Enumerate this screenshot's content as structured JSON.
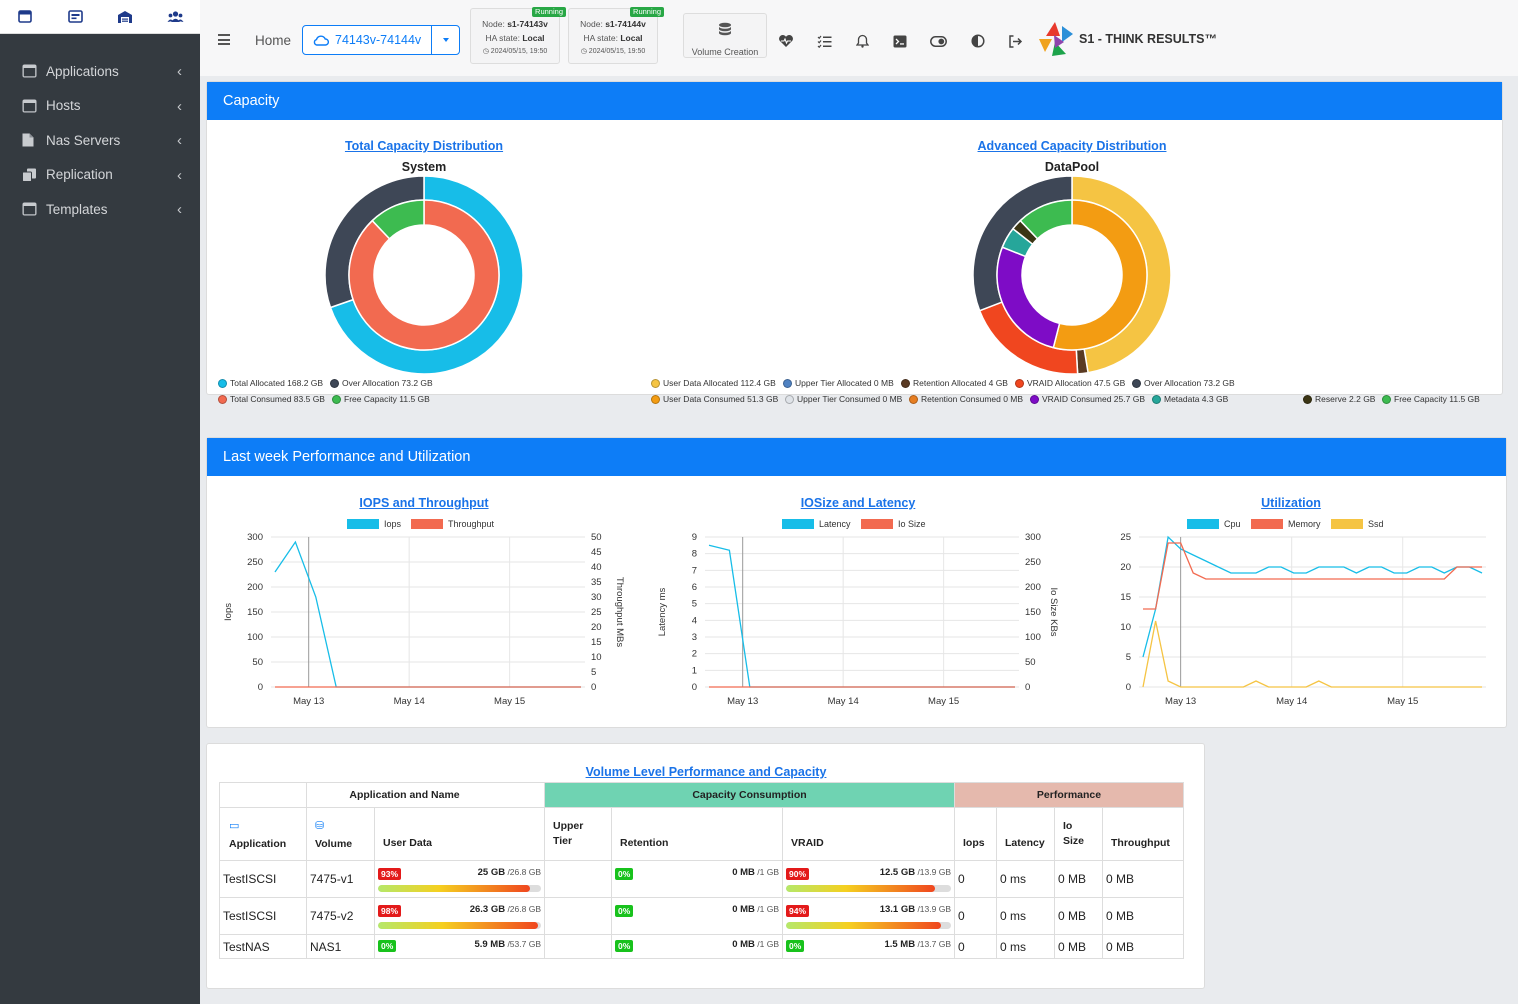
{
  "sidebar": {
    "items": [
      {
        "label": "Applications",
        "icon": "window-icon"
      },
      {
        "label": "Hosts",
        "icon": "host-icon"
      },
      {
        "label": "Nas Servers",
        "icon": "file-icon"
      },
      {
        "label": "Replication",
        "icon": "copy-icon"
      },
      {
        "label": "Templates",
        "icon": "window-icon"
      }
    ]
  },
  "topbar": {
    "home": "Home",
    "cluster": "74143v-74144v",
    "nodes": [
      {
        "badge": "Running",
        "node_label": "Node:",
        "node_name": "s1-74143v",
        "ha_label": "HA state:",
        "ha_value": "Local",
        "time": "2024/05/15, 19:50"
      },
      {
        "badge": "Running",
        "node_label": "Node:",
        "node_name": "s1-74144v",
        "ha_label": "HA state:",
        "ha_value": "Local",
        "time": "2024/05/15, 19:50"
      }
    ],
    "volume_creation": "Volume Creation",
    "brand": "S1 - THINK RESULTS™"
  },
  "capacity": {
    "header": "Capacity",
    "total": {
      "title": "Total Capacity Distribution",
      "subtitle": "System",
      "legend": [
        {
          "label": "Total Allocated 168.2 GB",
          "color": "#17bde8"
        },
        {
          "label": "Over Allocation 73.2 GB",
          "color": "#3e4756"
        },
        {
          "label": "Total Consumed 83.5 GB",
          "color": "#f26a50"
        },
        {
          "label": "Free Capacity 11.5 GB",
          "color": "#3dbb50"
        }
      ]
    },
    "advanced": {
      "title": "Advanced Capacity Distribution",
      "subtitle": "DataPool",
      "legend_row1": [
        {
          "label": "User Data Allocated 112.4 GB",
          "color": "#f5c443"
        },
        {
          "label": "Upper Tier Allocated 0 MB",
          "color": "#4f82c2"
        },
        {
          "label": "Retention Allocated 4 GB",
          "color": "#5a3a22"
        },
        {
          "label": "VRAID Allocation 47.5 GB",
          "color": "#f0461f"
        },
        {
          "label": "Over Allocation 73.2 GB",
          "color": "#3e4756"
        }
      ],
      "legend_row2": [
        {
          "label": "User Data Consumed 51.3 GB",
          "color": "#f39c12"
        },
        {
          "label": "Upper Tier Consumed 0 MB",
          "color": "#dfe3e8"
        },
        {
          "label": "Retention Consumed 0 MB",
          "color": "#e67e22"
        },
        {
          "label": "VRAID Consumed 25.7 GB",
          "color": "#7e0cc6"
        },
        {
          "label": "Metadata 4.3 GB",
          "color": "#26a69a"
        },
        {
          "label": "Reserve 2.2 GB",
          "color": "#3b3514"
        },
        {
          "label": "Free Capacity 11.5 GB",
          "color": "#3dbb50"
        }
      ]
    }
  },
  "chart_data": [
    {
      "type": "pie",
      "title": "Total Capacity Distribution",
      "subtitle": "System",
      "outer": {
        "labels": [
          "Total Allocated",
          "Over Allocation"
        ],
        "values": [
          168.2,
          73.2
        ],
        "colors": [
          "#17bde8",
          "#3e4756"
        ]
      },
      "inner": {
        "labels": [
          "Total Consumed",
          "Free Capacity"
        ],
        "values": [
          83.5,
          11.5
        ],
        "colors": [
          "#f26a50",
          "#3dbb50"
        ]
      }
    },
    {
      "type": "pie",
      "title": "Advanced Capacity Distribution",
      "subtitle": "DataPool",
      "outer": {
        "labels": [
          "User Data Allocated",
          "Upper Tier Allocated",
          "Retention Allocated",
          "VRAID Allocation",
          "Over Allocation"
        ],
        "values": [
          112.4,
          0,
          4,
          47.5,
          73.2
        ],
        "colors": [
          "#f5c443",
          "#4f82c2",
          "#5a3a22",
          "#f0461f",
          "#3e4756"
        ]
      },
      "inner": {
        "labels": [
          "User Data Consumed",
          "Upper Tier Consumed",
          "Retention Consumed",
          "VRAID Consumed",
          "Metadata",
          "Reserve",
          "Free Capacity"
        ],
        "values": [
          51.3,
          0,
          0,
          25.7,
          4.3,
          2.2,
          11.5
        ],
        "colors": [
          "#f39c12",
          "#dfe3e8",
          "#e67e22",
          "#7e0cc6",
          "#26a69a",
          "#3b3514",
          "#3dbb50"
        ]
      }
    },
    {
      "type": "line",
      "title": "IOPS and Throughput",
      "xlabels": [
        "May 13",
        "May 14",
        "May 15"
      ],
      "yleft": {
        "label": "Iops",
        "ticks": [
          "300",
          "250",
          "200",
          "150",
          "100",
          "50",
          "0"
        ],
        "range": [
          0,
          300
        ]
      },
      "yright": {
        "label": "Throughput MBs",
        "ticks": [
          "50",
          "45",
          "40",
          "35",
          "30",
          "25",
          "20",
          "15",
          "10",
          "5",
          "0"
        ],
        "range": [
          0,
          50
        ]
      },
      "series": [
        {
          "name": "Iops",
          "color": "#17bde8",
          "values": [
            230,
            290,
            180,
            0,
            0,
            0,
            0,
            0,
            0,
            0,
            0,
            0,
            0,
            0,
            0,
            0
          ]
        },
        {
          "name": "Throughput",
          "color": "#f26a50",
          "values": [
            0,
            0,
            0,
            0,
            0,
            0,
            0,
            0,
            0,
            0,
            0,
            0,
            0,
            0,
            0,
            0
          ]
        }
      ]
    },
    {
      "type": "line",
      "title": "IOSize and Latency",
      "xlabels": [
        "May 13",
        "May 14",
        "May 15"
      ],
      "yleft": {
        "label": "Latency ms",
        "ticks": [
          "9",
          "8",
          "7",
          "6",
          "5",
          "4",
          "3",
          "2",
          "1",
          "0"
        ],
        "range": [
          0,
          9
        ]
      },
      "yright": {
        "label": "Io Size KBs",
        "ticks": [
          "300",
          "250",
          "200",
          "150",
          "100",
          "50",
          "0"
        ],
        "range": [
          0,
          300
        ]
      },
      "series": [
        {
          "name": "Latency",
          "color": "#17bde8",
          "values": [
            8.5,
            8.2,
            0,
            0,
            0,
            0,
            0,
            0,
            0,
            0,
            0,
            0,
            0,
            0,
            0,
            0
          ]
        },
        {
          "name": "Io Size",
          "color": "#f26a50",
          "values": [
            0,
            0,
            0,
            0,
            0,
            0,
            0,
            0,
            0,
            0,
            0,
            0,
            0,
            0,
            0,
            0
          ]
        }
      ]
    },
    {
      "type": "line",
      "title": "Utilization",
      "xlabels": [
        "May 13",
        "May 14",
        "May 15"
      ],
      "yleft": {
        "label": "",
        "ticks": [
          "25",
          "20",
          "15",
          "10",
          "5",
          "0"
        ],
        "range": [
          0,
          25
        ]
      },
      "series": [
        {
          "name": "Cpu",
          "color": "#17bde8",
          "values": [
            5,
            13,
            25,
            23,
            22,
            21,
            20,
            19,
            19,
            19,
            20,
            20,
            19,
            19,
            20,
            20,
            20,
            19,
            20,
            20,
            19,
            19,
            20,
            20,
            19,
            20,
            20,
            19
          ]
        },
        {
          "name": "Memory",
          "color": "#f26a50",
          "values": [
            13,
            13,
            24,
            24,
            19,
            18,
            18,
            18,
            18,
            18,
            18,
            18,
            18,
            18,
            18,
            18,
            18,
            18,
            18,
            18,
            18,
            18,
            18,
            18,
            18,
            20,
            20,
            20
          ]
        },
        {
          "name": "Ssd",
          "color": "#f5c443",
          "values": [
            0,
            11,
            1,
            0,
            0,
            0,
            0,
            0,
            0,
            1,
            0,
            0,
            0,
            0,
            1,
            0,
            0,
            0,
            0,
            0,
            0,
            0,
            0,
            0,
            0,
            0,
            0,
            0
          ]
        }
      ]
    }
  ],
  "performance": {
    "header": "Last week Performance and Utilization"
  },
  "volumes": {
    "title": "Volume Level Performance and Capacity",
    "groups": {
      "app_name": "Application and Name",
      "capacity": "Capacity Consumption",
      "performance": "Performance"
    },
    "columns": {
      "application": "Application",
      "volume": "Volume",
      "user_data": "User Data",
      "upper_tier": "Upper Tier",
      "retention": "Retention",
      "vraid": "VRAID",
      "iops": "Iops",
      "latency": "Latency",
      "io_size": "Io Size",
      "throughput": "Throughput"
    },
    "rows": [
      {
        "app": "TestISCSI",
        "volume": "7475-v1",
        "ud_pct": "93%",
        "ud_pct_num": 93,
        "ud_used": "25 GB",
        "ud_total": "/26.8 GB",
        "ret_pct": "0%",
        "ret_used": "0 MB",
        "ret_total": "/1 GB",
        "vr_pct": "90%",
        "vr_pct_num": 90,
        "vr_used": "12.5 GB",
        "vr_total": "/13.9 GB",
        "iops": "0",
        "latency": "0 ms",
        "io_size": "0 MB",
        "throughput": "0 MB"
      },
      {
        "app": "TestISCSI",
        "volume": "7475-v2",
        "ud_pct": "98%",
        "ud_pct_num": 98,
        "ud_used": "26.3 GB",
        "ud_total": "/26.8 GB",
        "ret_pct": "0%",
        "ret_used": "0 MB",
        "ret_total": "/1 GB",
        "vr_pct": "94%",
        "vr_pct_num": 94,
        "vr_used": "13.1 GB",
        "vr_total": "/13.9 GB",
        "iops": "0",
        "latency": "0 ms",
        "io_size": "0 MB",
        "throughput": "0 MB"
      },
      {
        "app": "TestNAS",
        "volume": "NAS1",
        "ud_pct": "0%",
        "ud_pct_num": 0,
        "ud_used": "5.9 MB",
        "ud_total": "/53.7 GB",
        "ret_pct": "0%",
        "ret_used": "0 MB",
        "ret_total": "/1 GB",
        "vr_pct": "0%",
        "vr_pct_num": 0,
        "vr_used": "1.5 MB",
        "vr_total": "/13.7 GB",
        "iops": "0",
        "latency": "0 ms",
        "io_size": "0 MB",
        "throughput": "0 MB"
      }
    ]
  }
}
